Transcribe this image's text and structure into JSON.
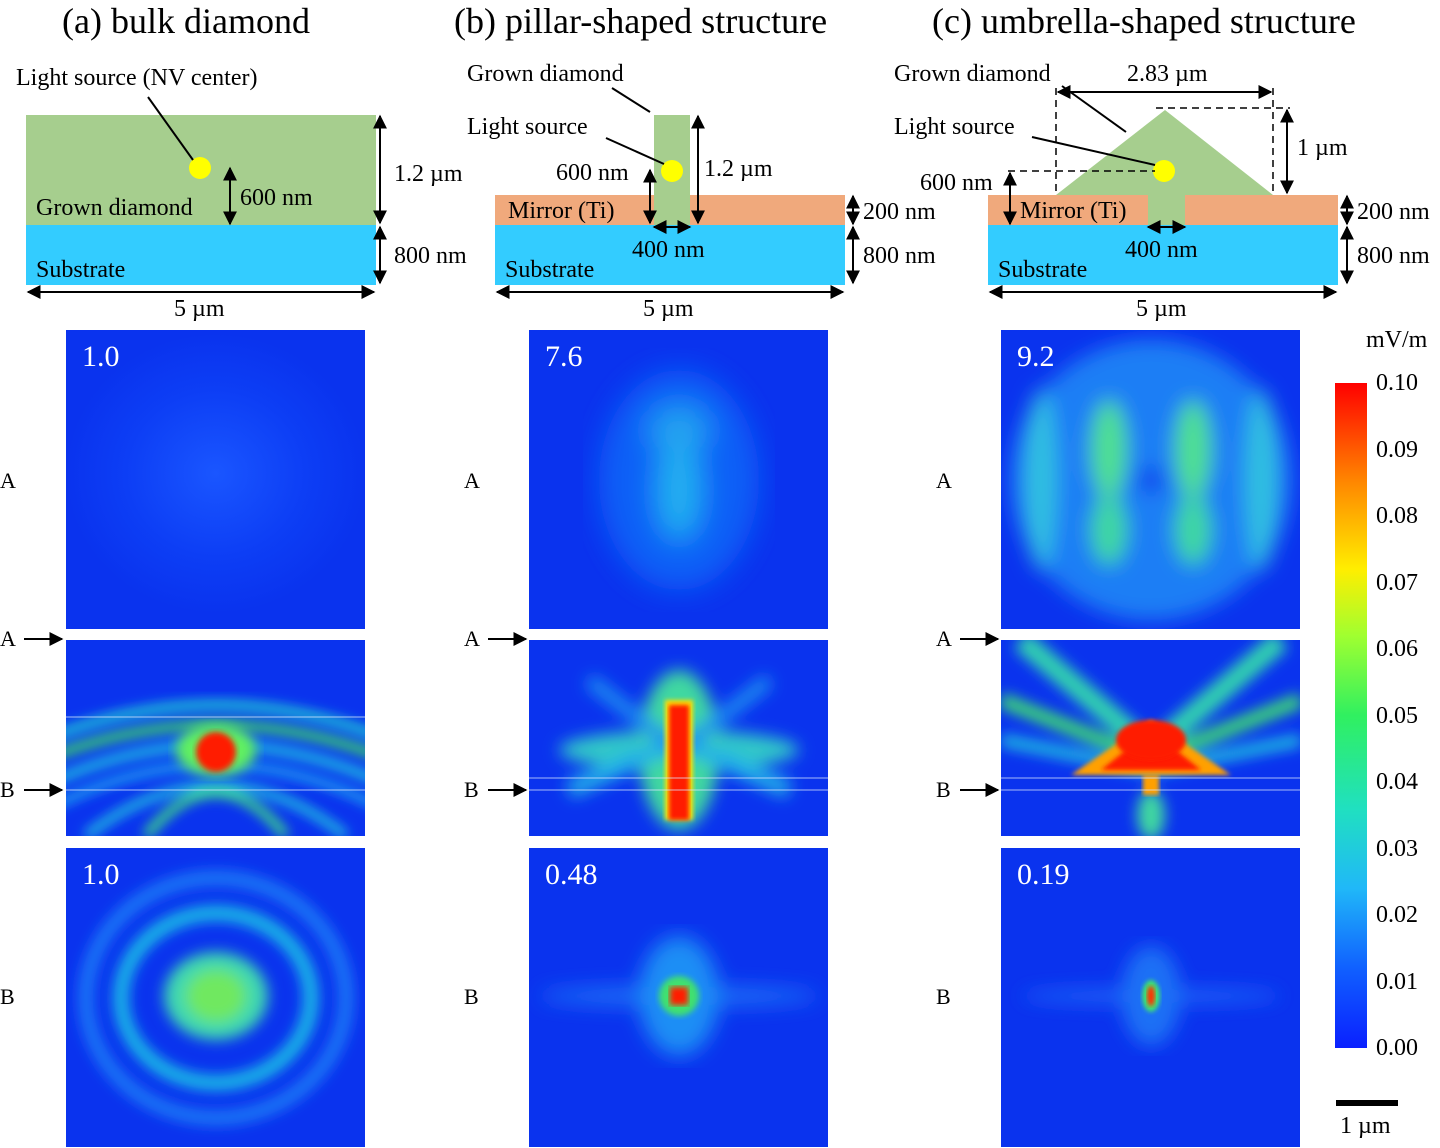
{
  "titles": {
    "a": "(a) bulk diamond",
    "b": "(b) pillar-shaped structure",
    "c": "(c) umbrella-shaped structure"
  },
  "schematic": {
    "a": {
      "light_source": "Light source (NV center)",
      "grown_diamond": "Grown diamond",
      "substrate": "Substrate",
      "dim_600": "600 nm",
      "dim_1_2": "1.2 µm",
      "dim_800": "800 nm",
      "dim_5": "5 µm"
    },
    "b": {
      "grown_diamond": "Grown diamond",
      "light_source": "Light source",
      "mirror": "Mirror (Ti)",
      "substrate": "Substrate",
      "dim_600": "600 nm",
      "dim_1_2": "1.2 µm",
      "dim_400": "400 nm",
      "dim_200": "200 nm",
      "dim_800": "800 nm",
      "dim_5": "5 µm"
    },
    "c": {
      "grown_diamond": "Grown diamond",
      "light_source": "Light source",
      "mirror": "Mirror (Ti)",
      "substrate": "Substrate",
      "dim_2_83": "2.83 µm",
      "dim_1": "1 µm",
      "dim_600": "600 nm",
      "dim_400": "400 nm",
      "dim_200": "200 nm",
      "dim_800": "800 nm",
      "dim_5": "5 µm"
    },
    "colors": {
      "diamond": "#a6ce8e",
      "substrate": "#33ccff",
      "mirror": "#f0a97c",
      "source": "#ffff00"
    }
  },
  "maps": {
    "a": {
      "top_value": "1.0",
      "bottom_value": "1.0"
    },
    "b": {
      "top_value": "7.6",
      "bottom_value": "0.48"
    },
    "c": {
      "top_value": "9.2",
      "bottom_value": "0.19"
    }
  },
  "row_labels": {
    "A": "A",
    "B": "B"
  },
  "colorbar": {
    "unit": "mV/m",
    "ticks": [
      "0.10",
      "0.09",
      "0.08",
      "0.07",
      "0.06",
      "0.05",
      "0.04",
      "0.03",
      "0.02",
      "0.01",
      "0.00"
    ],
    "colormap": "jet"
  },
  "scale_bar": "1 µm"
}
